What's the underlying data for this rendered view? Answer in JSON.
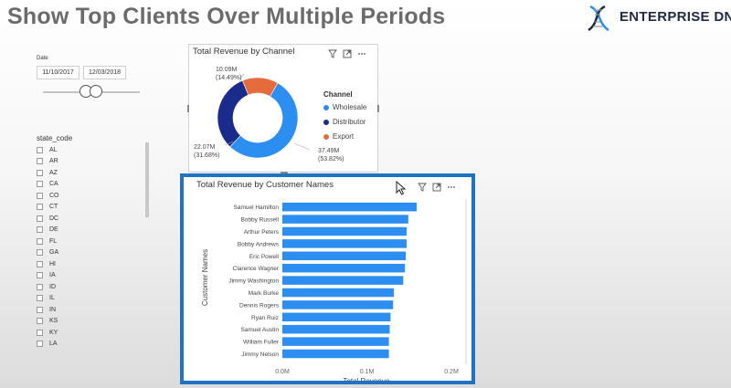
{
  "header": {
    "title": "Show Top Clients Over Multiple Periods"
  },
  "logo": {
    "text": "ENTERPRISE DNA"
  },
  "date_slicer": {
    "label": "Date",
    "start": "11/10/2017",
    "end": "12/03/2018"
  },
  "state_slicer": {
    "label": "state_code",
    "items": [
      "AL",
      "AR",
      "AZ",
      "CA",
      "CO",
      "CT",
      "DC",
      "DE",
      "FL",
      "GA",
      "HI",
      "IA",
      "ID",
      "IL",
      "IN",
      "KS",
      "KY",
      "LA"
    ]
  },
  "donut_visual": {
    "title": "Total Revenue by Channel",
    "legend_title": "Channel",
    "slice_labels": [
      {
        "value": "37.49M",
        "percent": "(53.82%)"
      },
      {
        "value": "22.07M",
        "percent": "(31.68%)"
      },
      {
        "value": "10.09M",
        "percent": "(14.49%)"
      }
    ]
  },
  "bar_visual": {
    "title": "Total Revenue by Customer Names"
  },
  "colors": {
    "wholesale": "#2b8ef0",
    "distributor": "#1a2b8c",
    "export": "#e66b3c",
    "bar": "#2b8ef0",
    "accent": "#1f73c0"
  },
  "chart_data": [
    {
      "type": "pie",
      "title": "Total Revenue by Channel",
      "legend_title": "Channel",
      "categories": [
        "Wholesale",
        "Distributor",
        "Export"
      ],
      "values": [
        37.49,
        22.07,
        10.09
      ],
      "percents": [
        53.82,
        31.68,
        14.49
      ],
      "legend_position": "right"
    },
    {
      "type": "bar",
      "orientation": "horizontal",
      "title": "Total Revenue by Customer Names",
      "xlabel": "Total Revenue",
      "ylabel": "Customer Names",
      "categories": [
        "Samuel Hamilton",
        "Bobby Russell",
        "Arthur Peters",
        "Bobby Andrews",
        "Eric Powell",
        "Clarence Wagner",
        "Jimmy Washington",
        "Mark Burke",
        "Dennis Rogers",
        "Ryan Ruiz",
        "Samuel Austin",
        "William Fuller",
        "Jimmy Nelson"
      ],
      "values": [
        0.159,
        0.149,
        0.147,
        0.147,
        0.146,
        0.145,
        0.143,
        0.132,
        0.131,
        0.128,
        0.127,
        0.126,
        0.126
      ],
      "xlim": [
        0,
        0.2
      ],
      "xticks": [
        "0.0M",
        "0.1M",
        "0.2M"
      ]
    }
  ]
}
